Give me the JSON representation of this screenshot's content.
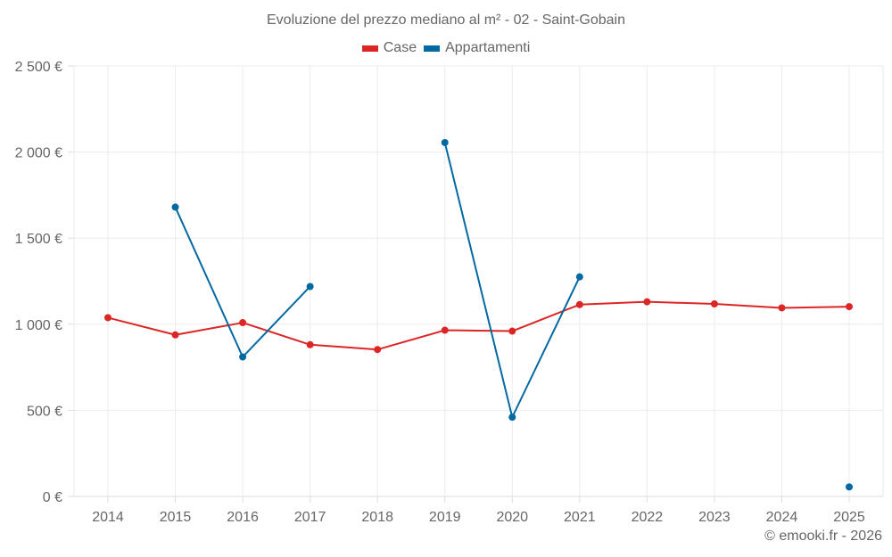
{
  "chart_data": {
    "type": "line",
    "title": "Evoluzione del prezzo mediano al m² - 02 - Saint-Gobain",
    "xlabel": "",
    "ylabel": "",
    "x": [
      2014,
      2015,
      2016,
      2017,
      2018,
      2019,
      2020,
      2021,
      2022,
      2023,
      2024,
      2025
    ],
    "x_tick_labels": [
      "2014",
      "2015",
      "2016",
      "2017",
      "2018",
      "2019",
      "2020",
      "2021",
      "2022",
      "2023",
      "2024",
      "2025"
    ],
    "ylim": [
      0,
      2500
    ],
    "y_ticks": [
      0,
      500,
      1000,
      1500,
      2000,
      2500
    ],
    "y_tick_labels": [
      "0 €",
      "500 €",
      "1 000 €",
      "1 500 €",
      "2 000 €",
      "2 500 €"
    ],
    "grid": true,
    "legend_position": "top-center",
    "series": [
      {
        "name": "Case",
        "color": "#dc2626",
        "values": [
          1038,
          938,
          1009,
          881,
          853,
          965,
          960,
          1114,
          1130,
          1118,
          1095,
          1102
        ]
      },
      {
        "name": "Appartamenti",
        "color": "#0369a1",
        "values": [
          null,
          1680,
          810,
          1219,
          null,
          2055,
          460,
          1275,
          null,
          null,
          null,
          55
        ]
      }
    ]
  },
  "footer": {
    "copyright": "© emooki.fr - 2026"
  }
}
